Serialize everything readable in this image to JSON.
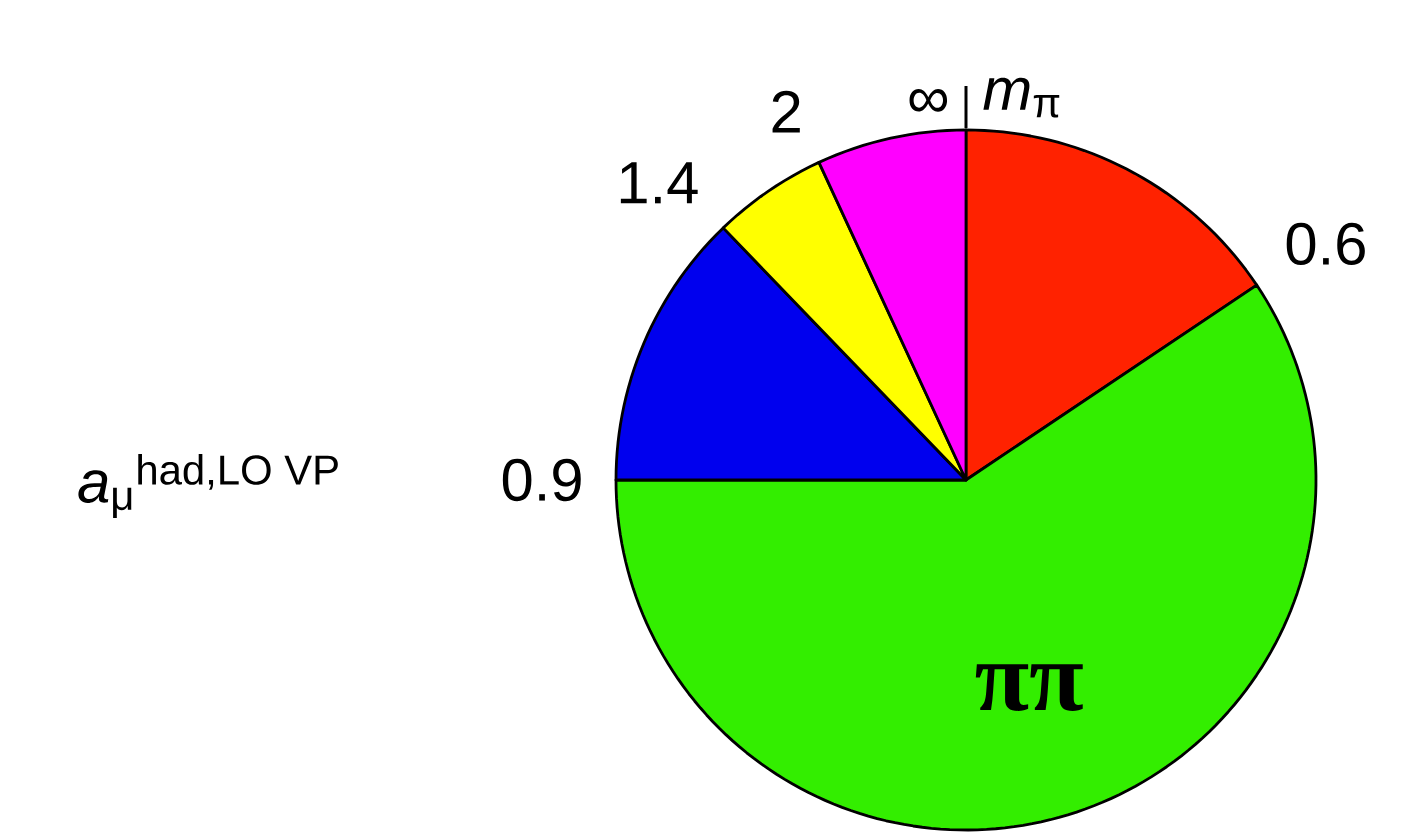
{
  "chart_data": {
    "type": "pie",
    "title": "*a*$_{μ}$$^{had,LO VP}$",
    "categories": [
      null,
      "ππ",
      null,
      null,
      null
    ],
    "values": [
      15.6,
      59.4,
      12.8,
      5.3,
      6.9
    ],
    "colors": [
      "#ff2200",
      "#33ee00",
      "#0000ee",
      "#ffff00",
      "#ff00ff"
    ],
    "annotations": [
      "*m*$_{π}$",
      "0.6",
      "0.9",
      "1.4",
      "2",
      "∞"
    ]
  }
}
